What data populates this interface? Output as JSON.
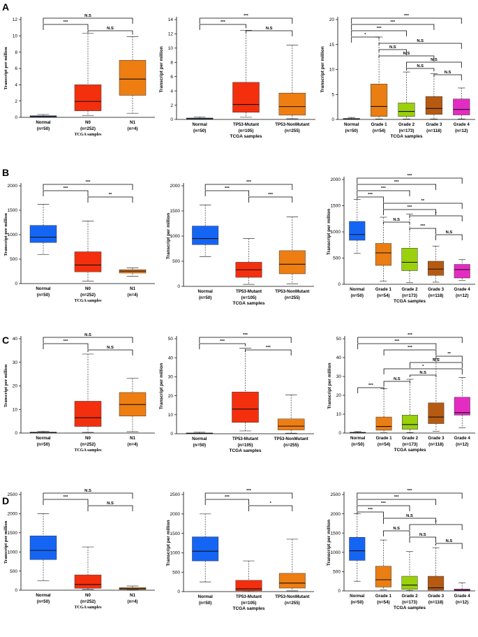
{
  "figure": {
    "rows": [
      {
        "label": "A"
      },
      {
        "label": "B"
      },
      {
        "label": "C"
      },
      {
        "label": "D"
      }
    ]
  },
  "colors": {
    "Normal": "#1565f5",
    "N0": "#f42f0e",
    "N1": "#ef7e12",
    "TP53-Mutant": "#f42f0e",
    "TP53-NonMutant": "#ef7e12",
    "Grade 1": "#ea7e12",
    "Grade 2": "#9ad00c",
    "Grade 3": "#b65a12",
    "Grade 4": "#e42cc3"
  },
  "chart_data": [
    {
      "id": "A1",
      "row": 0,
      "col": 0,
      "type": "boxplot",
      "ylabel": "Transcript per million",
      "xlabel": "TCGA samples",
      "ylim": [
        0,
        12
      ],
      "yticks": [
        0,
        2,
        4,
        6,
        8,
        10,
        12
      ],
      "categories": [
        "Normal",
        "N0",
        "N1"
      ],
      "counts": [
        "(n=50)",
        "(n=252)",
        "(n=4)"
      ],
      "boxes": [
        {
          "min": 0,
          "q1": 0.05,
          "median": 0.1,
          "q3": 0.2,
          "max": 0.35
        },
        {
          "min": 0.2,
          "q1": 0.8,
          "median": 1.95,
          "q3": 4.0,
          "max": 10.3
        },
        {
          "min": 0.5,
          "q1": 2.7,
          "median": 4.7,
          "q3": 7.0,
          "max": 9.9
        }
      ],
      "comparisons": [
        {
          "a": 0,
          "b": 2,
          "label": "N.S"
        },
        {
          "a": 0,
          "b": 1,
          "label": "***"
        },
        {
          "a": 1,
          "b": 2,
          "label": "N.S"
        }
      ]
    },
    {
      "id": "A2",
      "row": 0,
      "col": 1,
      "type": "boxplot",
      "ylabel": "Transcript per million",
      "xlabel": "TCGA samples",
      "ylim": [
        0,
        14
      ],
      "yticks": [
        0,
        2,
        4,
        6,
        8,
        10,
        12,
        14
      ],
      "categories": [
        "Normal",
        "TP53-Mutant",
        "TP53-NonMutant"
      ],
      "counts": [
        "(n=50)",
        "(n=105)",
        "(n=255)"
      ],
      "boxes": [
        {
          "min": 0,
          "q1": 0.05,
          "median": 0.1,
          "q3": 0.2,
          "max": 0.35
        },
        {
          "min": 0.3,
          "q1": 1.0,
          "median": 2.1,
          "q3": 5.2,
          "max": 12.5
        },
        {
          "min": 0.1,
          "q1": 0.6,
          "median": 1.8,
          "q3": 3.7,
          "max": 10.4
        }
      ],
      "comparisons": [
        {
          "a": 0,
          "b": 2,
          "label": "***"
        },
        {
          "a": 0,
          "b": 1,
          "label": "***"
        },
        {
          "a": 1,
          "b": 2,
          "label": "N.S"
        }
      ]
    },
    {
      "id": "A3",
      "row": 0,
      "col": 2,
      "type": "boxplot",
      "ylabel": "Transcript per million",
      "xlabel": "TCGA samples",
      "ylim": [
        0,
        20
      ],
      "yticks": [
        0,
        5,
        10,
        15,
        20
      ],
      "categories": [
        "Normal",
        "Grade 1",
        "Grade 2",
        "Grade 3",
        "Grade 4"
      ],
      "counts": [
        "(n=50)",
        "(n=54)",
        "(n=173)",
        "(n=118)",
        "(n=12)"
      ],
      "boxes": [
        {
          "min": 0,
          "q1": 0.05,
          "median": 0.1,
          "q3": 0.2,
          "max": 0.4
        },
        {
          "min": 0.1,
          "q1": 0.6,
          "median": 2.6,
          "q3": 7.1,
          "max": 16.5
        },
        {
          "min": 0.1,
          "q1": 0.6,
          "median": 1.6,
          "q3": 3.3,
          "max": 9.5
        },
        {
          "min": 0.1,
          "q1": 1.0,
          "median": 2.2,
          "q3": 4.6,
          "max": 9.2
        },
        {
          "min": 0.1,
          "q1": 0.9,
          "median": 2.0,
          "q3": 4.1,
          "max": 6.3
        }
      ],
      "comparisons": [
        {
          "a": 0,
          "b": 4,
          "label": "***"
        },
        {
          "a": 0,
          "b": 3,
          "label": "***"
        },
        {
          "a": 0,
          "b": 2,
          "label": "***"
        },
        {
          "a": 0,
          "b": 1,
          "label": "*"
        },
        {
          "a": 1,
          "b": 4,
          "label": "N.S"
        },
        {
          "a": 1,
          "b": 2,
          "label": "N.S"
        },
        {
          "a": 1,
          "b": 3,
          "label": "N.S"
        },
        {
          "a": 2,
          "b": 4,
          "label": "N.S"
        },
        {
          "a": 2,
          "b": 3,
          "label": "N.S"
        },
        {
          "a": 3,
          "b": 4,
          "label": "N.S"
        }
      ]
    },
    {
      "id": "B1",
      "row": 1,
      "col": 0,
      "type": "boxplot",
      "ylabel": "Transcript per million",
      "xlabel": "TCGA samples",
      "ylim": [
        0,
        2000
      ],
      "yticks": [
        0,
        500,
        1000,
        1500,
        2000
      ],
      "categories": [
        "Normal",
        "N0",
        "N1"
      ],
      "counts": [
        "(n=50)",
        "(n=252)",
        "(n=4)"
      ],
      "boxes": [
        {
          "min": 590,
          "q1": 840,
          "median": 950,
          "q3": 1190,
          "max": 1620
        },
        {
          "min": 50,
          "q1": 240,
          "median": 380,
          "q3": 650,
          "max": 1280
        },
        {
          "min": 150,
          "q1": 215,
          "median": 255,
          "q3": 285,
          "max": 320
        }
      ],
      "comparisons": [
        {
          "a": 0,
          "b": 2,
          "label": "***"
        },
        {
          "a": 0,
          "b": 1,
          "label": "***"
        },
        {
          "a": 1,
          "b": 2,
          "label": "**"
        }
      ]
    },
    {
      "id": "B2",
      "row": 1,
      "col": 1,
      "type": "boxplot",
      "ylabel": "Transcript per million",
      "xlabel": "TCGA samples",
      "ylim": [
        0,
        2000
      ],
      "yticks": [
        0,
        500,
        1000,
        1500,
        2000
      ],
      "categories": [
        "Normal",
        "TP53-Mutant",
        "TP53-NonMutant"
      ],
      "counts": [
        "(n=50)",
        "(n=105)",
        "(n=255)"
      ],
      "boxes": [
        {
          "min": 590,
          "q1": 830,
          "median": 950,
          "q3": 1200,
          "max": 1620
        },
        {
          "min": 40,
          "q1": 180,
          "median": 330,
          "q3": 480,
          "max": 950
        },
        {
          "min": 50,
          "q1": 250,
          "median": 440,
          "q3": 710,
          "max": 1380
        }
      ],
      "comparisons": [
        {
          "a": 0,
          "b": 2,
          "label": "***"
        },
        {
          "a": 0,
          "b": 1,
          "label": "***"
        },
        {
          "a": 1,
          "b": 2,
          "label": "***"
        }
      ]
    },
    {
      "id": "B3",
      "row": 1,
      "col": 2,
      "type": "boxplot",
      "ylabel": "Transcript per million",
      "xlabel": "TCGA samples",
      "ylim": [
        0,
        2000
      ],
      "yticks": [
        0,
        500,
        1000,
        1500,
        2000
      ],
      "categories": [
        "Normal",
        "Grade 1",
        "Grade 2",
        "Grade 3",
        "Grade 4"
      ],
      "counts": [
        "(n=50)",
        "(n=54)",
        "(n=173)",
        "(n=118)",
        "(n=12)"
      ],
      "boxes": [
        {
          "min": 590,
          "q1": 840,
          "median": 950,
          "q3": 1200,
          "max": 1620
        },
        {
          "min": 60,
          "q1": 360,
          "median": 600,
          "q3": 780,
          "max": 1280
        },
        {
          "min": 30,
          "q1": 260,
          "median": 420,
          "q3": 690,
          "max": 1340
        },
        {
          "min": 40,
          "q1": 170,
          "median": 290,
          "q3": 440,
          "max": 730
        },
        {
          "min": 70,
          "q1": 120,
          "median": 280,
          "q3": 380,
          "max": 470
        }
      ],
      "comparisons": [
        {
          "a": 0,
          "b": 4,
          "label": "***"
        },
        {
          "a": 0,
          "b": 3,
          "label": "***"
        },
        {
          "a": 0,
          "b": 2,
          "label": "***"
        },
        {
          "a": 0,
          "b": 1,
          "label": "***"
        },
        {
          "a": 1,
          "b": 4,
          "label": "**"
        },
        {
          "a": 1,
          "b": 3,
          "label": "***"
        },
        {
          "a": 2,
          "b": 4,
          "label": "*"
        },
        {
          "a": 1,
          "b": 2,
          "label": "N.S"
        },
        {
          "a": 2,
          "b": 3,
          "label": "***"
        },
        {
          "a": 3,
          "b": 4,
          "label": "N.S"
        }
      ]
    },
    {
      "id": "C1",
      "row": 2,
      "col": 0,
      "type": "boxplot",
      "ylabel": "Transcript per million",
      "xlabel": "TCGA samples",
      "ylim": [
        0,
        40
      ],
      "yticks": [
        0,
        10,
        20,
        30,
        40
      ],
      "categories": [
        "Normal",
        "N0",
        "N1"
      ],
      "counts": [
        "(n=50)",
        "(n=252)",
        "(n=4)"
      ],
      "boxes": [
        {
          "min": 0,
          "q1": 0.1,
          "median": 0.2,
          "q3": 0.4,
          "max": 0.8
        },
        {
          "min": 0.3,
          "q1": 2.8,
          "median": 6.5,
          "q3": 13.5,
          "max": 33.5
        },
        {
          "min": 0.6,
          "q1": 7.2,
          "median": 12.1,
          "q3": 17.2,
          "max": 23.2
        }
      ],
      "comparisons": [
        {
          "a": 0,
          "b": 2,
          "label": "N.S"
        },
        {
          "a": 0,
          "b": 1,
          "label": "***"
        },
        {
          "a": 1,
          "b": 2,
          "label": "N.S"
        }
      ]
    },
    {
      "id": "C2",
      "row": 2,
      "col": 1,
      "type": "boxplot",
      "ylabel": "Transcript per million",
      "xlabel": "TCGA samples",
      "ylim": [
        0,
        50
      ],
      "yticks": [
        0,
        10,
        20,
        30,
        40,
        50
      ],
      "categories": [
        "Normal",
        "TP53-Mutant",
        "TP53-NonMutant"
      ],
      "counts": [
        "(n=50)",
        "(n=105)",
        "(n=255)"
      ],
      "boxes": [
        {
          "min": 0,
          "q1": 0.1,
          "median": 0.2,
          "q3": 0.4,
          "max": 0.8
        },
        {
          "min": 1.5,
          "q1": 6.0,
          "median": 13.0,
          "q3": 22.0,
          "max": 45.0
        },
        {
          "min": 0.3,
          "q1": 2.0,
          "median": 4.0,
          "q3": 7.8,
          "max": 20.5
        }
      ],
      "comparisons": [
        {
          "a": 0,
          "b": 2,
          "label": "***"
        },
        {
          "a": 0,
          "b": 1,
          "label": "***"
        },
        {
          "a": 1,
          "b": 2,
          "label": "***"
        }
      ]
    },
    {
      "id": "C3",
      "row": 2,
      "col": 2,
      "type": "boxplot",
      "ylabel": "Transcript per million",
      "xlabel": "TCGA samples",
      "ylim": [
        0,
        50
      ],
      "yticks": [
        0,
        10,
        20,
        30,
        40,
        50
      ],
      "categories": [
        "Normal",
        "Grade 1",
        "Grade 2",
        "Grade 3",
        "Grade 4"
      ],
      "counts": [
        "(n=50)",
        "(n=54)",
        "(n=173)",
        "(n=118)",
        "(n=12)"
      ],
      "boxes": [
        {
          "min": 0,
          "q1": 0.1,
          "median": 0.2,
          "q3": 0.4,
          "max": 0.8
        },
        {
          "min": 0.2,
          "q1": 1.5,
          "median": 3.5,
          "q3": 8.5,
          "max": 23.5
        },
        {
          "min": 0.3,
          "q1": 2.0,
          "median": 4.5,
          "q3": 9.5,
          "max": 28.5
        },
        {
          "min": 1.0,
          "q1": 5.0,
          "median": 8.5,
          "q3": 16.0,
          "max": 39.5
        },
        {
          "min": 2.8,
          "q1": 9.5,
          "median": 10.8,
          "q3": 19.0,
          "max": 29.5
        }
      ],
      "comparisons": [
        {
          "a": 0,
          "b": 4,
          "label": "***"
        },
        {
          "a": 0,
          "b": 3,
          "label": "***"
        },
        {
          "a": 1,
          "b": 3,
          "label": "***"
        },
        {
          "a": 3,
          "b": 4,
          "label": "**"
        },
        {
          "a": 2,
          "b": 4,
          "label": "N.S"
        },
        {
          "a": 1,
          "b": 4,
          "label": "*"
        },
        {
          "a": 2,
          "b": 3,
          "label": "N.S"
        },
        {
          "a": 1,
          "b": 2,
          "label": "N.S"
        },
        {
          "a": 0,
          "b": 1,
          "label": "***"
        }
      ]
    },
    {
      "id": "D1",
      "row": 3,
      "col": 0,
      "type": "boxplot",
      "ylabel": "Transcript per million",
      "xlabel": "TCGA samples",
      "ylim": [
        0,
        2500
      ],
      "yticks": [
        0,
        500,
        1000,
        1500,
        2000,
        2500
      ],
      "categories": [
        "Normal",
        "N0",
        "N1"
      ],
      "counts": [
        "(n=50)",
        "(n=252)",
        "(n=4)"
      ],
      "boxes": [
        {
          "min": 250,
          "q1": 800,
          "median": 1040,
          "q3": 1420,
          "max": 2000
        },
        {
          "min": 20,
          "q1": 50,
          "median": 150,
          "q3": 400,
          "max": 1130
        },
        {
          "min": 10,
          "q1": 20,
          "median": 40,
          "q3": 70,
          "max": 110
        }
      ],
      "comparisons": [
        {
          "a": 0,
          "b": 2,
          "label": "N.S"
        },
        {
          "a": 0,
          "b": 1,
          "label": "***"
        },
        {
          "a": 1,
          "b": 2,
          "label": "N.S"
        }
      ]
    },
    {
      "id": "D2",
      "row": 3,
      "col": 1,
      "type": "boxplot",
      "ylabel": "Transcript per million",
      "xlabel": "TCGA samples",
      "ylim": [
        0,
        2500
      ],
      "yticks": [
        0,
        500,
        1000,
        1500,
        2000,
        2500
      ],
      "categories": [
        "Normal",
        "TP53-Mutant",
        "TP53-NonMutant"
      ],
      "counts": [
        "(n=50)",
        "(n=105)",
        "(n=255)"
      ],
      "boxes": [
        {
          "min": 250,
          "q1": 790,
          "median": 1040,
          "q3": 1410,
          "max": 2000
        },
        {
          "min": 5,
          "q1": 20,
          "median": 70,
          "q3": 290,
          "max": 790
        },
        {
          "min": 20,
          "q1": 90,
          "median": 220,
          "q3": 470,
          "max": 1350
        }
      ],
      "comparisons": [
        {
          "a": 0,
          "b": 2,
          "label": "***"
        },
        {
          "a": 0,
          "b": 1,
          "label": "***"
        },
        {
          "a": 1,
          "b": 2,
          "label": "*"
        }
      ]
    },
    {
      "id": "D3",
      "row": 3,
      "col": 2,
      "type": "boxplot",
      "ylabel": "Transcript per million",
      "xlabel": "TCGA samples",
      "ylim": [
        0,
        2500
      ],
      "yticks": [
        0,
        500,
        1000,
        1500,
        2000,
        2500
      ],
      "categories": [
        "Normal",
        "Grade 1",
        "Grade 2",
        "Grade 3",
        "Grade 4"
      ],
      "counts": [
        "(n=50)",
        "(n=54)",
        "(n=173)",
        "(n=118)",
        "(n=12)"
      ],
      "boxes": [
        {
          "min": 250,
          "q1": 790,
          "median": 1040,
          "q3": 1390,
          "max": 2000
        },
        {
          "min": 30,
          "q1": 100,
          "median": 290,
          "q3": 640,
          "max": 1320
        },
        {
          "min": 10,
          "q1": 40,
          "median": 150,
          "q3": 380,
          "max": 1020
        },
        {
          "min": 5,
          "q1": 20,
          "median": 80,
          "q3": 380,
          "max": 1120
        },
        {
          "min": 2,
          "q1": 5,
          "median": 20,
          "q3": 50,
          "max": 210
        }
      ],
      "comparisons": [
        {
          "a": 0,
          "b": 4,
          "label": "***"
        },
        {
          "a": 0,
          "b": 3,
          "label": "***"
        },
        {
          "a": 0,
          "b": 2,
          "label": "***"
        },
        {
          "a": 0,
          "b": 1,
          "label": "***"
        },
        {
          "a": 1,
          "b": 3,
          "label": "N.S"
        },
        {
          "a": 2,
          "b": 4,
          "label": "*"
        },
        {
          "a": 1,
          "b": 2,
          "label": "N.S"
        },
        {
          "a": 2,
          "b": 3,
          "label": "N.S"
        },
        {
          "a": 3,
          "b": 4,
          "label": "N.S"
        }
      ]
    }
  ]
}
